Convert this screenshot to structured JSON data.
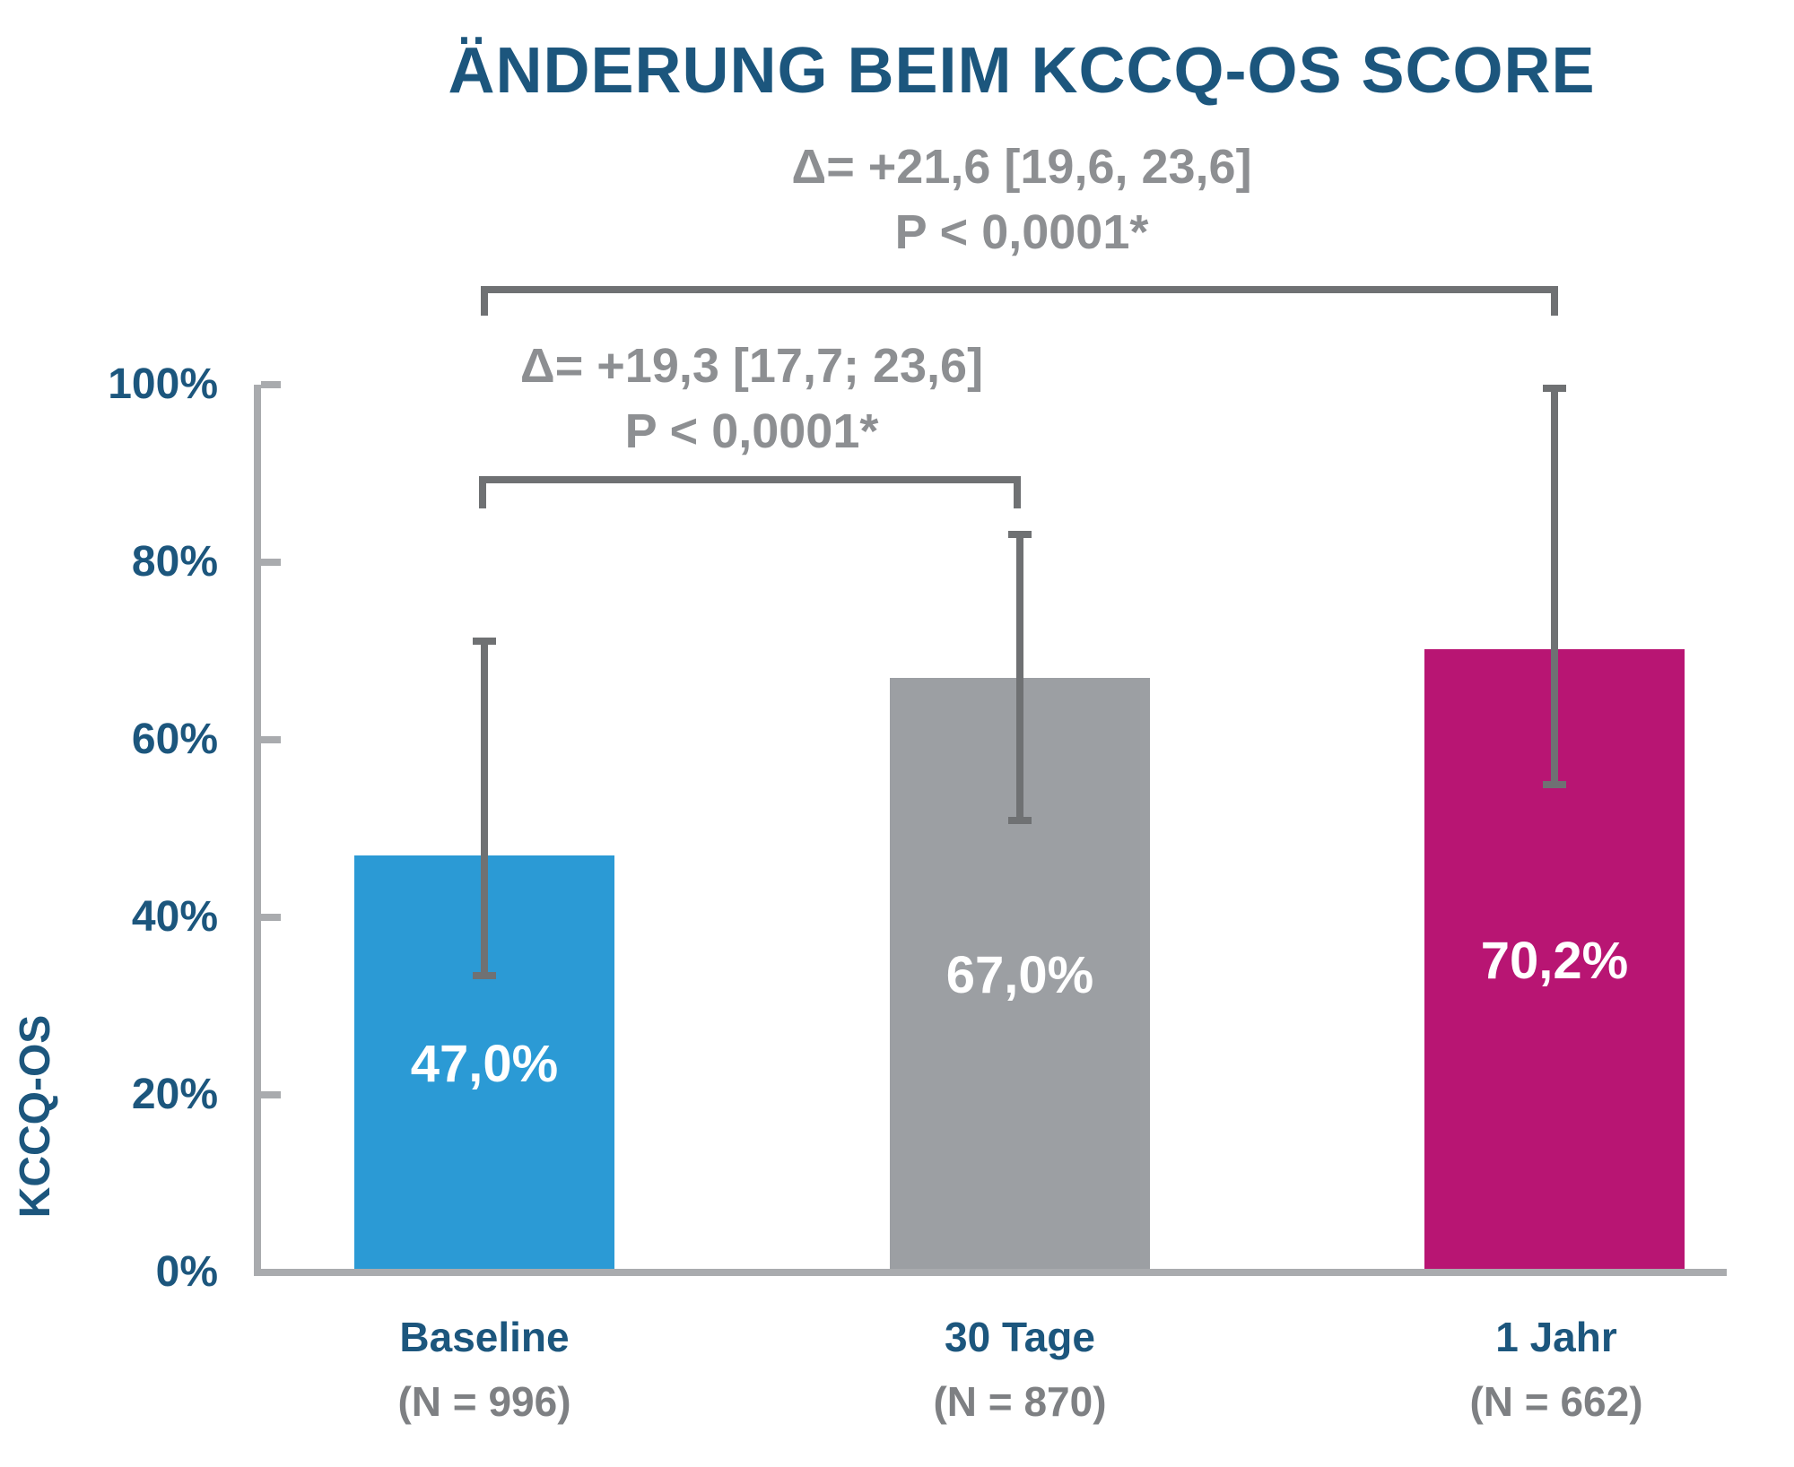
{
  "title": "ÄNDERUNG BEIM KCCQ-OS SCORE",
  "comparisons": [
    {
      "delta": "Δ= +21,6 [19,6, 23,6]",
      "p": "P < 0,0001*",
      "from": "Baseline",
      "to": "1 Jahr"
    },
    {
      "delta": "Δ= +19,3 [17,7; 23,6]",
      "p": "P < 0,0001*",
      "from": "Baseline",
      "to": "30 Tage"
    }
  ],
  "y_axis": {
    "label": "KCCQ-OS",
    "ticks": [
      "100%",
      "80%",
      "60%",
      "40%",
      "20%",
      "0%"
    ]
  },
  "bars": [
    {
      "category": "Baseline",
      "n": "(N = 996)",
      "value_label": "47,0%"
    },
    {
      "category": "30 Tage",
      "n": "(N = 870)",
      "value_label": "67,0%"
    },
    {
      "category": "1 Jahr",
      "n": "(N = 662)",
      "value_label": "70,2%"
    }
  ],
  "colors": {
    "bar_blue": "#2B9AD5",
    "bar_gray": "#9C9FA3",
    "bar_magenta": "#B81573",
    "heading_blue": "#1C567D",
    "annotation_gray": "#8D8F92",
    "errorbar_gray": "#6F7173",
    "axis_gray": "#A9ABAE"
  },
  "chart_data": {
    "type": "bar",
    "title": "ÄNDERUNG BEIM KCCQ-OS SCORE",
    "xlabel": "",
    "ylabel": "KCCQ-OS",
    "categories": [
      "Baseline",
      "30 Tage",
      "1 Jahr"
    ],
    "category_sublabels": [
      "(N = 996)",
      "(N = 870)",
      "(N = 662)"
    ],
    "values": [
      47.0,
      67.0,
      70.2
    ],
    "value_labels": [
      "47,0%",
      "67,0%",
      "70,2%"
    ],
    "error_low": [
      33.0,
      50.5,
      54.5
    ],
    "error_high": [
      71.5,
      83.5,
      100.0
    ],
    "bar_colors": [
      "#2B9AD5",
      "#9C9FA3",
      "#B81573"
    ],
    "ylim": [
      0,
      100
    ],
    "yticks": [
      "0%",
      "20%",
      "40%",
      "60%",
      "80%",
      "100%"
    ],
    "grid": false,
    "legend": false,
    "annotations": [
      {
        "text": "Δ= +21,6 [19,6, 23,6]",
        "p": "P < 0,0001*",
        "compares": [
          "Baseline",
          "1 Jahr"
        ]
      },
      {
        "text": "Δ= +19,3 [17,7; 23,6]",
        "p": "P < 0,0001*",
        "compares": [
          "Baseline",
          "30 Tage"
        ]
      }
    ]
  }
}
